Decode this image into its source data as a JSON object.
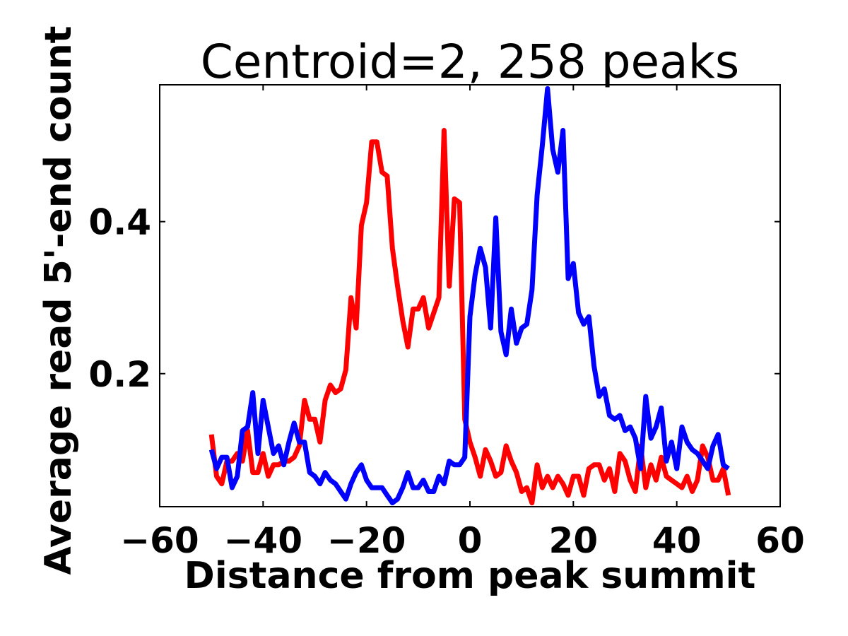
{
  "chart_data": {
    "type": "line",
    "title": "Centroid=2, 258 peaks",
    "xlabel": "Distance from peak summit",
    "ylabel": "Average read 5'-end count",
    "xlim": [
      -60,
      60
    ],
    "ylim": [
      0.025,
      0.58
    ],
    "xticks": [
      -60,
      -40,
      -20,
      0,
      20,
      40,
      60
    ],
    "xtick_labels": [
      "−60",
      "−40",
      "−20",
      "0",
      "20",
      "40",
      "60"
    ],
    "yticks": [
      0.2,
      0.4
    ],
    "ytick_labels": [
      "0.2",
      "0.4"
    ],
    "grid": false,
    "x": [
      -50,
      -49,
      -48,
      -47,
      -46,
      -45,
      -44,
      -43,
      -42,
      -41,
      -40,
      -39,
      -38,
      -37,
      -36,
      -35,
      -34,
      -33,
      -32,
      -31,
      -30,
      -29,
      -28,
      -27,
      -26,
      -25,
      -24,
      -23,
      -22,
      -21,
      -20,
      -19,
      -18,
      -17,
      -16,
      -15,
      -14,
      -13,
      -12,
      -11,
      -10,
      -9,
      -8,
      -7,
      -6,
      -5,
      -4,
      -3,
      -2,
      -1,
      0,
      1,
      2,
      3,
      4,
      5,
      6,
      7,
      8,
      9,
      10,
      11,
      12,
      13,
      14,
      15,
      16,
      17,
      18,
      19,
      20,
      21,
      22,
      23,
      24,
      25,
      26,
      27,
      28,
      29,
      30,
      31,
      32,
      33,
      34,
      35,
      36,
      37,
      38,
      39,
      40,
      41,
      42,
      43,
      44,
      45,
      46,
      47,
      48,
      49,
      50
    ],
    "series": [
      {
        "color": "#ff0000",
        "values": [
          0.12,
          0.065,
          0.055,
          0.085,
          0.085,
          0.095,
          0.085,
          0.125,
          0.07,
          0.07,
          0.095,
          0.065,
          0.08,
          0.08,
          0.085,
          0.085,
          0.09,
          0.105,
          0.165,
          0.14,
          0.14,
          0.11,
          0.165,
          0.185,
          0.175,
          0.18,
          0.205,
          0.3,
          0.26,
          0.395,
          0.425,
          0.505,
          0.505,
          0.465,
          0.46,
          0.365,
          0.315,
          0.27,
          0.235,
          0.285,
          0.285,
          0.3,
          0.26,
          0.28,
          0.3,
          0.52,
          0.315,
          0.43,
          0.425,
          0.14,
          0.11,
          0.09,
          0.065,
          0.1,
          0.085,
          0.065,
          0.07,
          0.105,
          0.085,
          0.07,
          0.045,
          0.05,
          0.03,
          0.08,
          0.05,
          0.065,
          0.05,
          0.065,
          0.055,
          0.04,
          0.065,
          0.065,
          0.04,
          0.075,
          0.08,
          0.08,
          0.06,
          0.075,
          0.045,
          0.095,
          0.085,
          0.06,
          0.045,
          0.105,
          0.05,
          0.08,
          0.06,
          0.09,
          0.065,
          0.06,
          0.055,
          0.05,
          0.065,
          0.045,
          0.06,
          0.105,
          0.09,
          0.06,
          0.06,
          0.075,
          0.04
        ]
      },
      {
        "color": "#0000ff",
        "values": [
          0.1,
          0.075,
          0.09,
          0.09,
          0.05,
          0.065,
          0.125,
          0.13,
          0.175,
          0.095,
          0.165,
          0.13,
          0.095,
          0.105,
          0.08,
          0.11,
          0.135,
          0.11,
          0.11,
          0.07,
          0.065,
          0.055,
          0.07,
          0.06,
          0.055,
          0.045,
          0.035,
          0.055,
          0.07,
          0.08,
          0.06,
          0.05,
          0.05,
          0.05,
          0.04,
          0.03,
          0.035,
          0.05,
          0.07,
          0.05,
          0.05,
          0.06,
          0.045,
          0.045,
          0.065,
          0.055,
          0.085,
          0.08,
          0.08,
          0.09,
          0.275,
          0.33,
          0.365,
          0.34,
          0.26,
          0.405,
          0.255,
          0.225,
          0.285,
          0.24,
          0.26,
          0.265,
          0.31,
          0.435,
          0.5,
          0.575,
          0.495,
          0.465,
          0.52,
          0.325,
          0.345,
          0.28,
          0.265,
          0.275,
          0.21,
          0.17,
          0.18,
          0.145,
          0.14,
          0.145,
          0.125,
          0.13,
          0.115,
          0.075,
          0.17,
          0.115,
          0.13,
          0.155,
          0.085,
          0.11,
          0.075,
          0.13,
          0.11,
          0.1,
          0.095,
          0.085,
          0.075,
          0.105,
          0.12,
          0.08,
          0.075
        ]
      }
    ]
  }
}
